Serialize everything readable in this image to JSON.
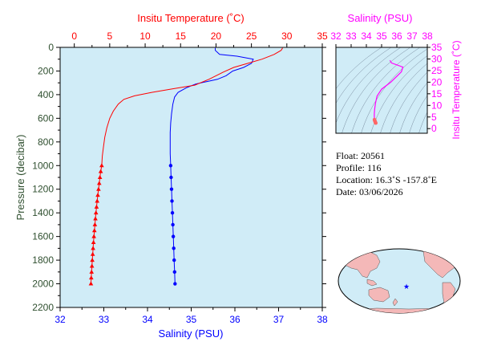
{
  "chart_data": [
    {
      "type": "line",
      "id": "profile",
      "top_axis_label": "Insitu Temperature (˚C)",
      "bottom_axis_label": "Salinity (PSU)",
      "left_axis_label": "Pressure (decibar)",
      "temperature_range": [
        -2,
        35
      ],
      "salinity_range": [
        32,
        38
      ],
      "pressure_range": [
        0,
        2200
      ],
      "pressure_ticks": [
        0,
        200,
        400,
        600,
        800,
        1000,
        1200,
        1400,
        1600,
        1800,
        2000,
        2200
      ],
      "temperature_ticks": [
        0,
        5,
        10,
        15,
        20,
        25,
        30,
        35
      ],
      "salinity_ticks": [
        32,
        33,
        34,
        35,
        36,
        37,
        38
      ],
      "series": [
        {
          "quantity": "temperature",
          "color": "#ff0000",
          "marker": "triangle",
          "points": [
            [
              29.4,
              5
            ],
            [
              29.2,
              25
            ],
            [
              28.2,
              60
            ],
            [
              26.5,
              100
            ],
            [
              24.5,
              135
            ],
            [
              22.5,
              170
            ],
            [
              21.0,
              210
            ],
            [
              19.0,
              270
            ],
            [
              17.0,
              320
            ],
            [
              14.0,
              350
            ],
            [
              11.0,
              380
            ],
            [
              8.5,
              410
            ],
            [
              7.0,
              440
            ],
            [
              6.2,
              480
            ],
            [
              5.5,
              540
            ],
            [
              5.0,
              600
            ],
            [
              4.6,
              680
            ],
            [
              4.3,
              760
            ],
            [
              4.1,
              850
            ],
            [
              3.95,
              920
            ],
            [
              3.87,
              1000
            ],
            [
              3.73,
              1050
            ],
            [
              3.62,
              1100
            ],
            [
              3.52,
              1150
            ],
            [
              3.42,
              1200
            ],
            [
              3.32,
              1250
            ],
            [
              3.23,
              1300
            ],
            [
              3.14,
              1350
            ],
            [
              3.06,
              1400
            ],
            [
              2.98,
              1450
            ],
            [
              2.91,
              1500
            ],
            [
              2.84,
              1550
            ],
            [
              2.77,
              1600
            ],
            [
              2.71,
              1650
            ],
            [
              2.65,
              1700
            ],
            [
              2.6,
              1750
            ],
            [
              2.54,
              1800
            ],
            [
              2.49,
              1850
            ],
            [
              2.44,
              1900
            ],
            [
              2.39,
              1950
            ],
            [
              2.35,
              2000
            ]
          ],
          "marker_from_pressure": 1000
        },
        {
          "quantity": "salinity",
          "color": "#0000ff",
          "marker": "circle",
          "points": [
            [
              35.55,
              5
            ],
            [
              35.55,
              25
            ],
            [
              35.65,
              60
            ],
            [
              36.05,
              75
            ],
            [
              36.42,
              100
            ],
            [
              36.38,
              135
            ],
            [
              36.2,
              170
            ],
            [
              35.95,
              200
            ],
            [
              35.8,
              240
            ],
            [
              35.6,
              270
            ],
            [
              35.35,
              290
            ],
            [
              35.1,
              310
            ],
            [
              34.9,
              340
            ],
            [
              34.7,
              380
            ],
            [
              34.62,
              420
            ],
            [
              34.58,
              480
            ],
            [
              34.55,
              560
            ],
            [
              34.53,
              640
            ],
            [
              34.52,
              720
            ],
            [
              34.52,
              800
            ],
            [
              34.52,
              900
            ],
            [
              34.53,
              1000
            ],
            [
              34.54,
              1100
            ],
            [
              34.55,
              1200
            ],
            [
              34.56,
              1300
            ],
            [
              34.57,
              1400
            ],
            [
              34.58,
              1500
            ],
            [
              34.59,
              1600
            ],
            [
              34.6,
              1700
            ],
            [
              34.61,
              1800
            ],
            [
              34.62,
              1900
            ],
            [
              34.63,
              2000
            ]
          ],
          "marker_from_pressure": 1000,
          "marker_step": 50
        }
      ]
    },
    {
      "type": "scatter",
      "id": "ts-diagram",
      "top_axis_label": "Salinity (PSU)",
      "right_axis_label": "Insitu Temperature (˚C)",
      "salinity_range": [
        32,
        38
      ],
      "temperature_range": [
        -2,
        35
      ],
      "salinity_ticks": [
        32,
        33,
        34,
        35,
        36,
        37,
        38
      ],
      "temperature_ticks": [
        0,
        5,
        10,
        15,
        20,
        25,
        30,
        35
      ],
      "curve_color": "#ff00ff",
      "dot_color": "#ff6666",
      "curve_points": [
        [
          35.55,
          29.4
        ],
        [
          35.65,
          28.3
        ],
        [
          36.4,
          26.5
        ],
        [
          36.3,
          24.5
        ],
        [
          36.0,
          22.5
        ],
        [
          35.6,
          20.0
        ],
        [
          35.0,
          17.0
        ],
        [
          34.7,
          14.0
        ],
        [
          34.6,
          11.0
        ],
        [
          34.55,
          8.5
        ],
        [
          34.52,
          6.5
        ],
        [
          34.52,
          5.0
        ],
        [
          34.53,
          4.3
        ]
      ],
      "dot_points": [
        [
          34.53,
          3.9
        ],
        [
          34.54,
          3.7
        ],
        [
          34.55,
          3.5
        ],
        [
          34.56,
          3.3
        ],
        [
          34.57,
          3.1
        ],
        [
          34.58,
          2.9
        ],
        [
          34.59,
          2.7
        ],
        [
          34.6,
          2.55
        ],
        [
          34.61,
          2.45
        ],
        [
          34.62,
          2.4
        ]
      ]
    }
  ],
  "float_info": {
    "float": "Float:  20561",
    "profile": "Profile:  116",
    "location": "Location:  16.3˚S  -157.8˚E",
    "date": "Date:  03/06/2026"
  },
  "map": {
    "marker_color": "#0000ff",
    "land_color": "#f4b8b8",
    "ocean_color": "#d0ecf7",
    "marker_longitude": -157.8,
    "marker_latitude": -16.3
  },
  "colors": {
    "temperature": "#ff0000",
    "salinity": "#0000ff",
    "pressure_axis": "#2f4f2f",
    "ts_axis": "#ff00ff",
    "plot_background": "#d0ecf7"
  }
}
